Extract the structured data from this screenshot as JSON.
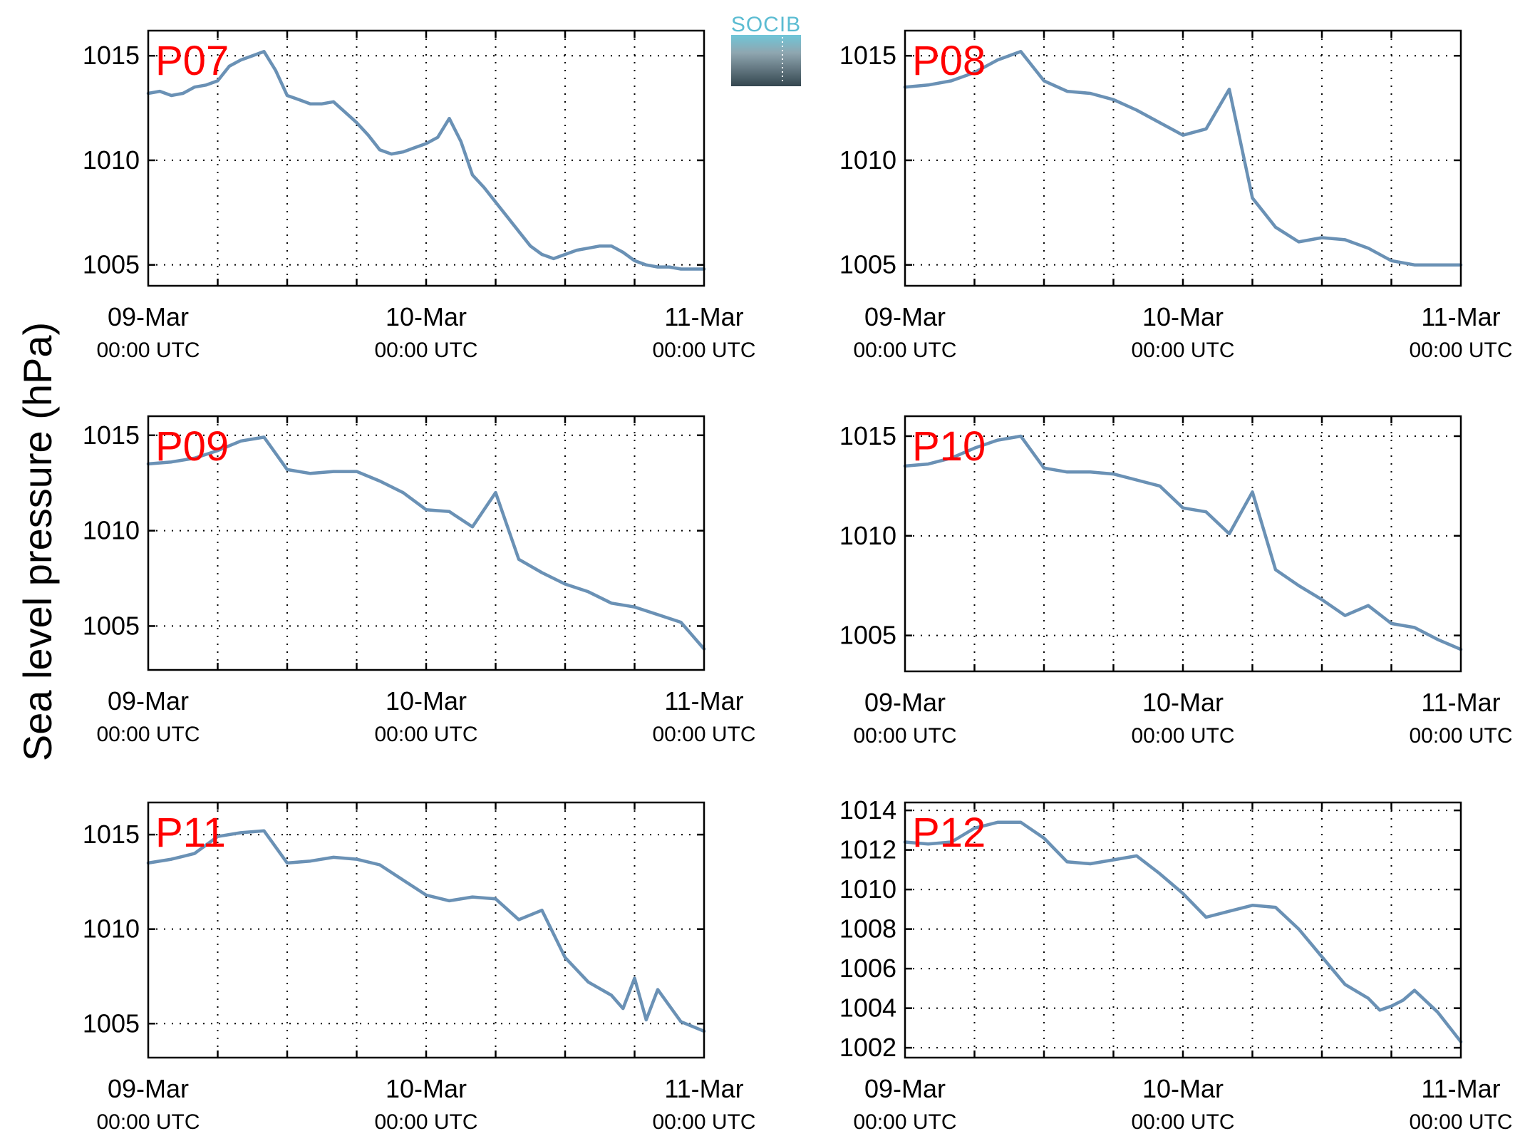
{
  "figure": {
    "ylabel": "Sea level pressure (hPa)",
    "logo_text": "SOCIB",
    "line_color": "#6a91b5",
    "panel_label_color": "#ff0000",
    "grid": "dotted"
  },
  "chart_data": [
    {
      "type": "line",
      "panel_label": "P07",
      "x_ticks": [
        {
          "line1": "09-Mar",
          "line2": "00:00 UTC"
        },
        {
          "line1": "10-Mar",
          "line2": "00:00 UTC"
        },
        {
          "line1": "11-Mar",
          "line2": "00:00 UTC"
        }
      ],
      "xlim_hours": [
        0,
        48
      ],
      "ylim": [
        1004,
        1016.2
      ],
      "y_ticks": [
        1005,
        1010,
        1015
      ],
      "series": [
        {
          "x_hours": [
            0,
            1,
            2,
            3,
            4,
            5,
            6,
            7,
            8,
            9,
            10,
            11,
            12,
            13,
            14,
            15,
            16,
            17,
            18,
            19,
            20,
            21,
            22,
            23,
            24,
            25,
            26,
            27,
            28,
            29,
            30,
            31,
            32,
            33,
            34,
            34.5,
            35,
            36,
            37,
            38,
            39,
            40,
            41,
            42,
            43,
            44,
            45,
            46,
            47,
            48
          ],
          "values": [
            1013.2,
            1013.3,
            1013.1,
            1013.2,
            1013.5,
            1013.6,
            1013.8,
            1014.5,
            1014.8,
            1015.0,
            1015.2,
            1014.3,
            1013.1,
            1012.9,
            1012.7,
            1012.7,
            1012.8,
            1012.3,
            1011.8,
            1011.2,
            1010.5,
            1010.3,
            1010.4,
            1010.6,
            1010.8,
            1011.1,
            1012.0,
            1010.9,
            1009.3,
            1008.7,
            1008.0,
            1007.3,
            1006.6,
            1005.9,
            1005.5,
            1005.4,
            1005.3,
            1005.5,
            1005.7,
            1005.8,
            1005.9,
            1005.9,
            1005.6,
            1005.2,
            1005.0,
            1004.9,
            1004.9,
            1004.8,
            1004.8,
            1004.8
          ]
        }
      ]
    },
    {
      "type": "line",
      "panel_label": "P08",
      "x_ticks": [
        {
          "line1": "09-Mar",
          "line2": "00:00 UTC"
        },
        {
          "line1": "10-Mar",
          "line2": "00:00 UTC"
        },
        {
          "line1": "11-Mar",
          "line2": "00:00 UTC"
        }
      ],
      "xlim_hours": [
        0,
        48
      ],
      "ylim": [
        1004,
        1016.2
      ],
      "y_ticks": [
        1005,
        1010,
        1015
      ],
      "series": [
        {
          "x_hours": [
            0,
            2,
            4,
            6,
            8,
            10,
            12,
            14,
            16,
            18,
            20,
            22,
            24,
            26,
            28,
            30,
            32,
            34,
            36,
            38,
            40,
            42,
            44,
            46,
            48
          ],
          "values": [
            1013.5,
            1013.6,
            1013.8,
            1014.2,
            1014.8,
            1015.2,
            1013.8,
            1013.3,
            1013.2,
            1012.9,
            1012.4,
            1011.8,
            1011.2,
            1011.5,
            1013.4,
            1008.2,
            1006.8,
            1006.1,
            1006.3,
            1006.2,
            1005.8,
            1005.2,
            1005.0,
            1005.0,
            1005.0
          ]
        }
      ]
    },
    {
      "type": "line",
      "panel_label": "P09",
      "x_ticks": [
        {
          "line1": "09-Mar",
          "line2": "00:00 UTC"
        },
        {
          "line1": "10-Mar",
          "line2": "00:00 UTC"
        },
        {
          "line1": "11-Mar",
          "line2": "00:00 UTC"
        }
      ],
      "xlim_hours": [
        0,
        48
      ],
      "ylim": [
        1002.7,
        1016
      ],
      "y_ticks": [
        1005,
        1010,
        1015
      ],
      "series": [
        {
          "x_hours": [
            0,
            2,
            4,
            6,
            8,
            10,
            12,
            14,
            16,
            18,
            20,
            22,
            24,
            26,
            28,
            30,
            32,
            34,
            36,
            38,
            40,
            42,
            44,
            46,
            48
          ],
          "values": [
            1013.5,
            1013.6,
            1013.8,
            1014.2,
            1014.7,
            1014.9,
            1013.2,
            1013.0,
            1013.1,
            1013.1,
            1012.6,
            1012.0,
            1011.1,
            1011.0,
            1010.2,
            1012.0,
            1008.5,
            1007.8,
            1007.2,
            1006.8,
            1006.2,
            1006.0,
            1005.6,
            1005.2,
            1003.8
          ]
        }
      ]
    },
    {
      "type": "line",
      "panel_label": "P10",
      "x_ticks": [
        {
          "line1": "09-Mar",
          "line2": "00:00 UTC"
        },
        {
          "line1": "10-Mar",
          "line2": "00:00 UTC"
        },
        {
          "line1": "11-Mar",
          "line2": "00:00 UTC"
        }
      ],
      "xlim_hours": [
        0,
        48
      ],
      "ylim": [
        1003.2,
        1016
      ],
      "y_ticks": [
        1005,
        1010,
        1015
      ],
      "series": [
        {
          "x_hours": [
            0,
            2,
            4,
            6,
            8,
            10,
            12,
            14,
            16,
            18,
            20,
            22,
            24,
            26,
            28,
            30,
            32,
            34,
            36,
            38,
            40,
            42,
            44,
            46,
            48
          ],
          "values": [
            1013.5,
            1013.6,
            1013.9,
            1014.4,
            1014.8,
            1015.0,
            1013.4,
            1013.2,
            1013.2,
            1013.1,
            1012.8,
            1012.5,
            1011.4,
            1011.2,
            1010.1,
            1012.2,
            1008.3,
            1007.5,
            1006.8,
            1006.0,
            1006.5,
            1005.6,
            1005.4,
            1004.8,
            1004.3
          ]
        }
      ]
    },
    {
      "type": "line",
      "panel_label": "P11",
      "x_ticks": [
        {
          "line1": "09-Mar",
          "line2": "00:00 UTC"
        },
        {
          "line1": "10-Mar",
          "line2": "00:00 UTC"
        },
        {
          "line1": "11-Mar",
          "line2": "00:00 UTC"
        }
      ],
      "xlim_hours": [
        0,
        48
      ],
      "ylim": [
        1003.2,
        1016.7
      ],
      "y_ticks": [
        1005,
        1010,
        1015
      ],
      "series": [
        {
          "x_hours": [
            0,
            2,
            4,
            6,
            8,
            10,
            12,
            14,
            16,
            18,
            20,
            22,
            24,
            26,
            28,
            30,
            32,
            34,
            36,
            38,
            40,
            41,
            42,
            43,
            44,
            46,
            48
          ],
          "values": [
            1013.5,
            1013.7,
            1014.0,
            1014.9,
            1015.1,
            1015.2,
            1013.5,
            1013.6,
            1013.8,
            1013.7,
            1013.4,
            1012.6,
            1011.8,
            1011.5,
            1011.7,
            1011.6,
            1010.5,
            1011.0,
            1008.5,
            1007.2,
            1006.5,
            1005.8,
            1007.4,
            1005.2,
            1006.8,
            1005.1,
            1004.6
          ]
        }
      ]
    },
    {
      "type": "line",
      "panel_label": "P12",
      "x_ticks": [
        {
          "line1": "09-Mar",
          "line2": "00:00 UTC"
        },
        {
          "line1": "10-Mar",
          "line2": "00:00 UTC"
        },
        {
          "line1": "11-Mar",
          "line2": "00:00 UTC"
        }
      ],
      "xlim_hours": [
        0,
        48
      ],
      "ylim": [
        1001.5,
        1014.4
      ],
      "y_ticks": [
        1002,
        1004,
        1006,
        1008,
        1010,
        1012,
        1014
      ],
      "series": [
        {
          "x_hours": [
            0,
            2,
            4,
            6,
            8,
            10,
            12,
            14,
            16,
            18,
            20,
            22,
            24,
            26,
            28,
            30,
            32,
            34,
            36,
            38,
            40,
            41,
            42,
            43,
            44,
            46,
            48
          ],
          "values": [
            1012.4,
            1012.3,
            1012.4,
            1013.1,
            1013.4,
            1013.4,
            1012.6,
            1011.4,
            1011.3,
            1011.5,
            1011.7,
            1010.8,
            1009.8,
            1008.6,
            1008.9,
            1009.2,
            1009.1,
            1008.0,
            1006.6,
            1005.2,
            1004.5,
            1003.9,
            1004.1,
            1004.4,
            1004.9,
            1003.8,
            1002.3
          ]
        }
      ]
    }
  ]
}
